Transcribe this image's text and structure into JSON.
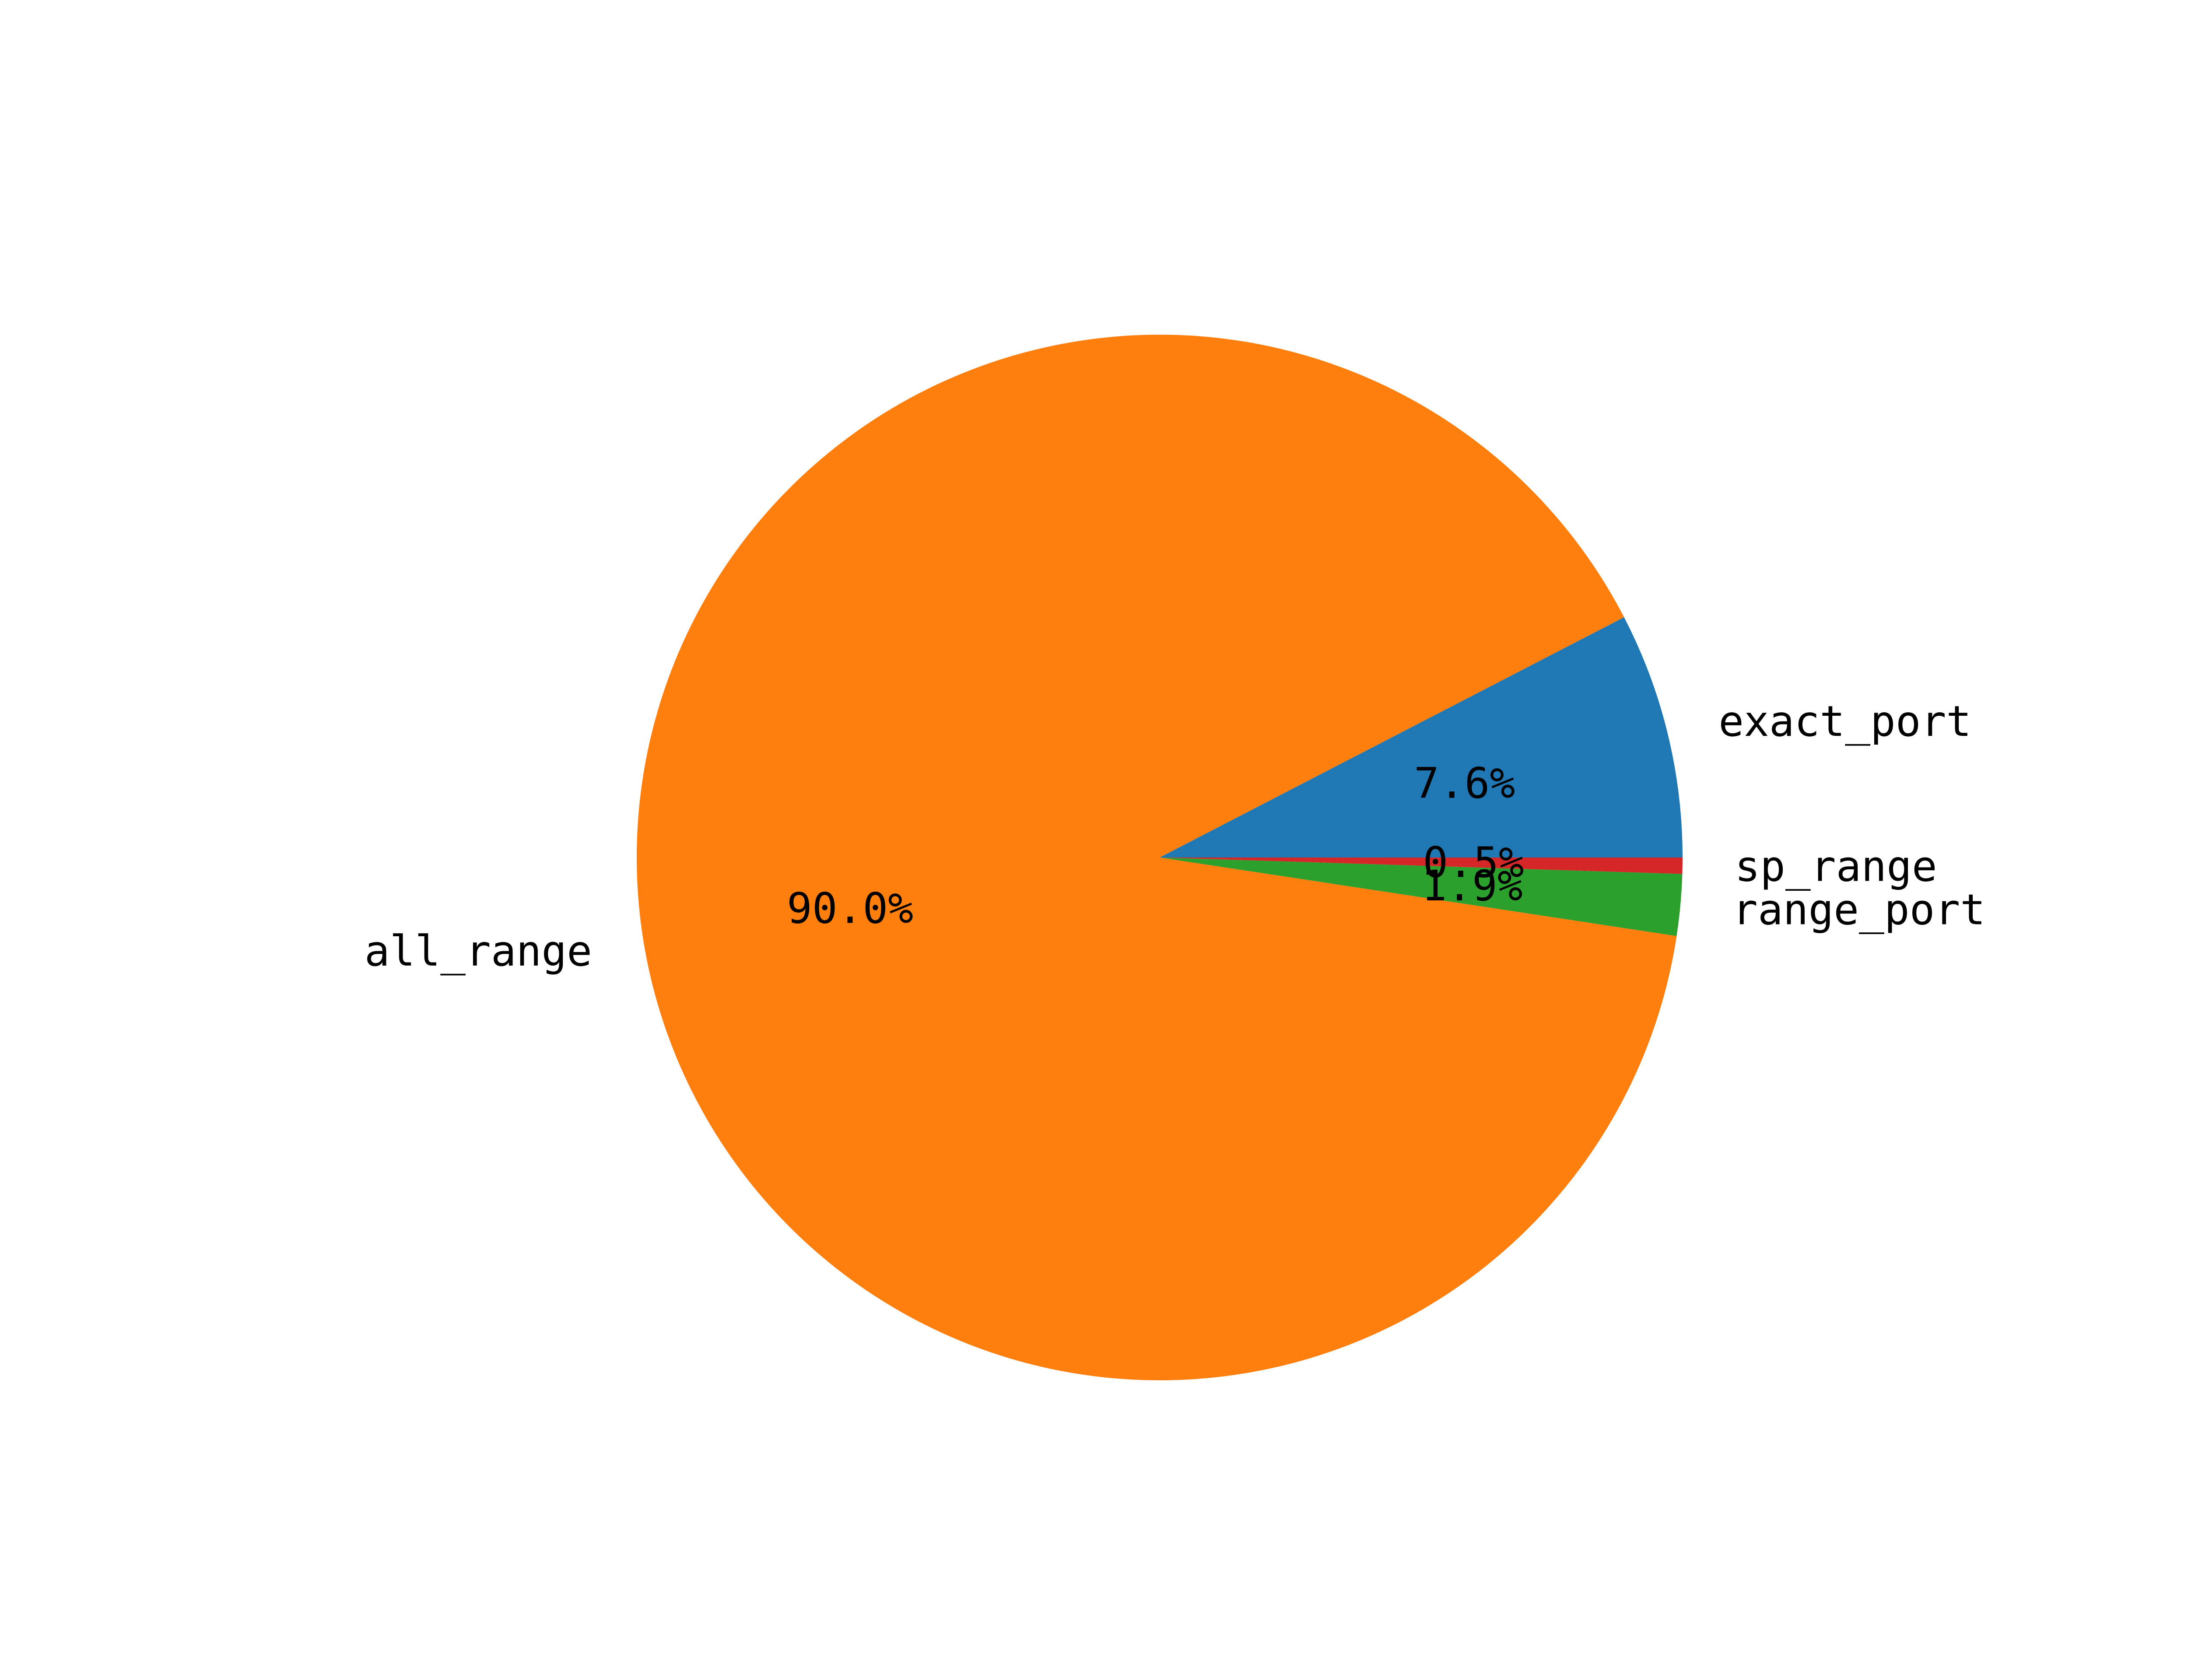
{
  "chart_data": {
    "type": "pie",
    "title": "",
    "start_angle_deg": 0,
    "direction": "counterclockwise",
    "slices": [
      {
        "label": "exact_port",
        "value": 7.6,
        "pct_label": "7.6%",
        "color": "#1f77b4"
      },
      {
        "label": "all_range",
        "value": 90.0,
        "pct_label": "90.0%",
        "color": "#ff7f0e"
      },
      {
        "label": "range_port",
        "value": 1.9,
        "pct_label": "1.9%",
        "color": "#2ca02c"
      },
      {
        "label": "sp_range",
        "value": 0.5,
        "pct_label": "0.5%",
        "color": "#d62728"
      }
    ]
  }
}
